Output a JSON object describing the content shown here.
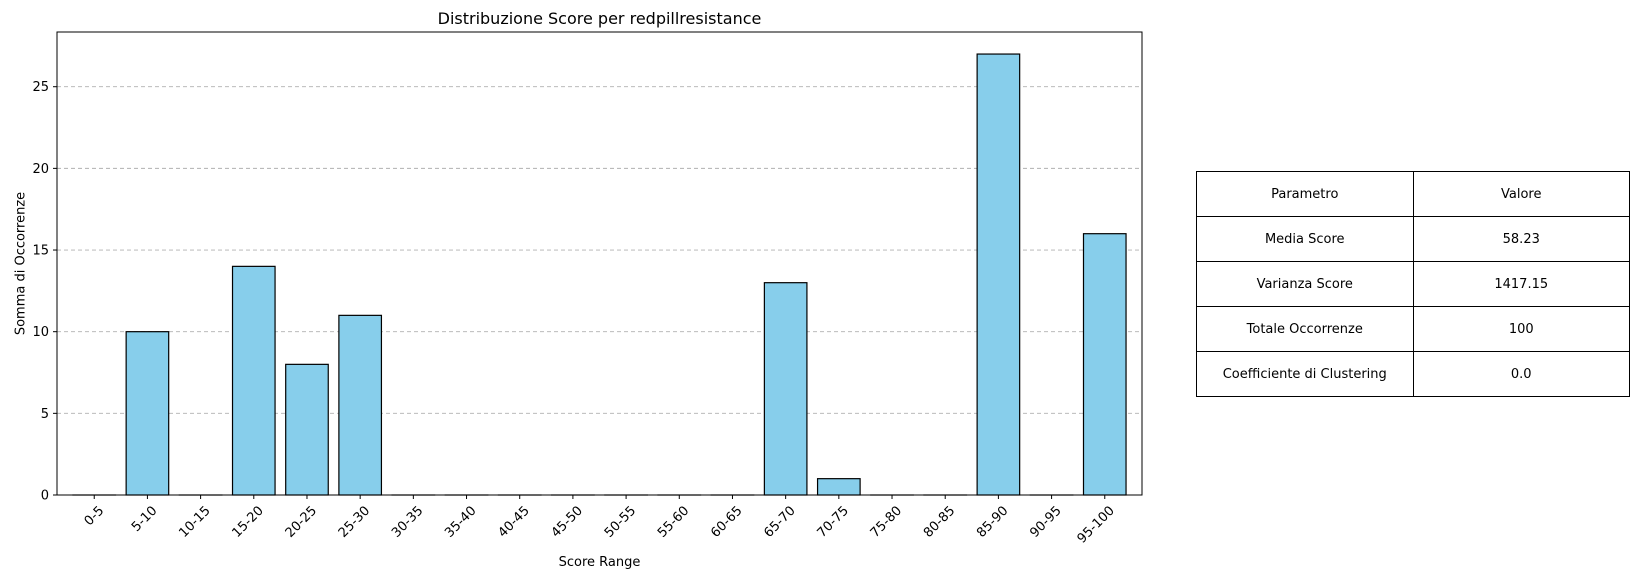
{
  "chart_data": {
    "type": "bar",
    "title": "Distribuzione Score per redpillresistance",
    "xlabel": "Score Range",
    "ylabel": "Somma di Occorrenze",
    "categories": [
      "0-5",
      "5-10",
      "10-15",
      "15-20",
      "20-25",
      "25-30",
      "30-35",
      "35-40",
      "40-45",
      "45-50",
      "50-55",
      "55-60",
      "60-65",
      "65-70",
      "70-75",
      "75-80",
      "80-85",
      "85-90",
      "90-95",
      "95-100"
    ],
    "values": [
      0,
      10,
      0,
      14,
      8,
      11,
      0,
      0,
      0,
      0,
      0,
      0,
      0,
      13,
      1,
      0,
      0,
      27,
      0,
      16
    ],
    "ylim": [
      0,
      28.35
    ],
    "yticks": [
      0,
      5,
      10,
      15,
      20,
      25
    ],
    "grid": "y-dashed",
    "bar_color": "#87CEEB",
    "edge_color": "#000000"
  },
  "table": {
    "rows": [
      [
        "Parametro",
        "Valore"
      ],
      [
        "Media Score",
        "58.23"
      ],
      [
        "Varianza Score",
        "1417.15"
      ],
      [
        "Totale Occorrenze",
        "100"
      ],
      [
        "Coefficiente di Clustering",
        "0.0"
      ]
    ]
  }
}
